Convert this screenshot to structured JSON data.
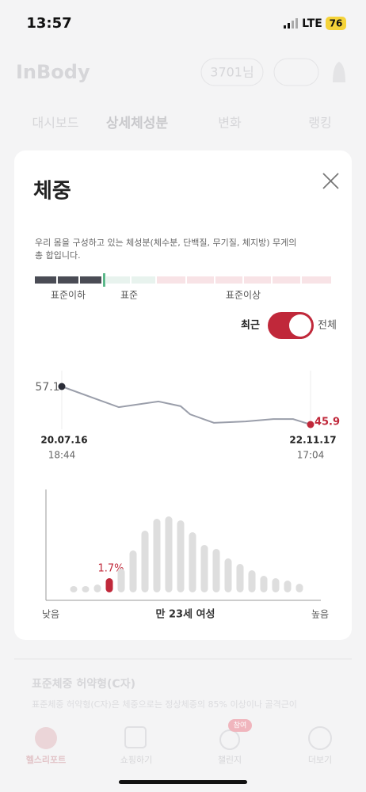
{
  "status_bar": {
    "time": "13:57",
    "network": "LTE",
    "battery": "76"
  },
  "header": {
    "logo": "InBody",
    "user": "3701님"
  },
  "tabs": [
    "대시보드",
    "상세체성분",
    "변화",
    "랭킹"
  ],
  "background_section": {
    "title": "표준체중 허약형(C자)",
    "text": "표준체중 허약형(C자)은 체중으로는 정상체중의 85% 이상이나 골격근이"
  },
  "bottom_nav": {
    "items": [
      "헬스리포트",
      "쇼핑하기",
      "챌린지",
      "더보기"
    ],
    "badge": "참여"
  },
  "modal": {
    "title": "체중",
    "description": [
      "우리 몸을 구성하고 있는 체성분(체수분, 단백질, 무기질, 체지방) 무게의",
      "총 합입니다."
    ],
    "range_labels": [
      "표준이하",
      "표준",
      "표준이상"
    ],
    "toggle": {
      "left": "최근",
      "right": "전체",
      "on": true
    },
    "trend": {
      "values": [
        57.1,
        51.0,
        52.7,
        51.3,
        48.9,
        46.4,
        46.8,
        47.5,
        47.5,
        45.9
      ],
      "first_label": "57.1",
      "last_label": "45.9",
      "start_date": "20.07.16",
      "start_time": "18:44",
      "end_date": "22.11.17",
      "end_time": "17:04",
      "line_color": "#9a9eaa",
      "last_color": "#c0283a"
    },
    "distribution": {
      "values": [
        8,
        8,
        10,
        18,
        30,
        53,
        78,
        93,
        96,
        91,
        76,
        60,
        55,
        43,
        36,
        28,
        21,
        18,
        15,
        11
      ],
      "highlight": 3,
      "highlight_label": "1.7%",
      "color": "#dedede",
      "highlight_color": "#c0283a",
      "low_label": "낮음",
      "center_label": "만 23세 여성",
      "high_label": "높음"
    }
  }
}
